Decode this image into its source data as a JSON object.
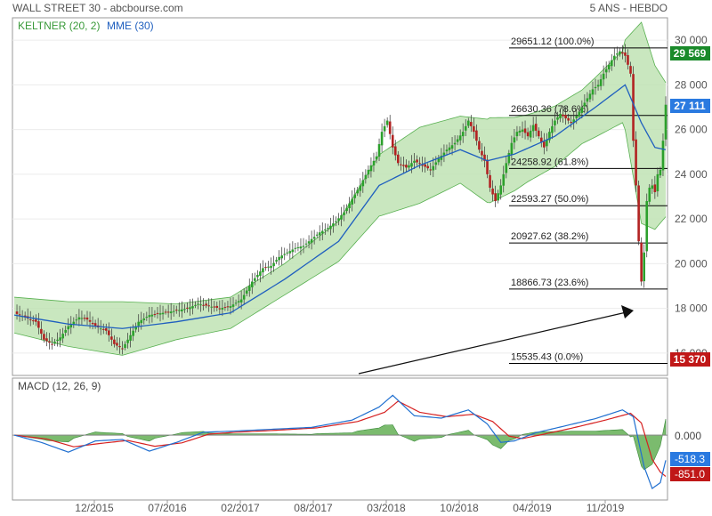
{
  "header": {
    "title": "WALL STREET 30 - abcbourse.com",
    "period": "5 ANS - HEBDO"
  },
  "legend": {
    "keltner": "KELTNER (20, 2)",
    "mme": "MME (30)",
    "macd": "MACD (12, 26, 9)"
  },
  "colors": {
    "up_candle": "#2ca02c",
    "down_candle": "#b22222",
    "keltner_fill": "#bfe3b4",
    "keltner_line": "#58b050",
    "mme_line": "#1f5fbf",
    "macd_line": "#1f6fd0",
    "signal_line": "#d62020",
    "histogram": "#5aaa4a",
    "fib_line": "#000000",
    "badge_green": "#1a8a2a",
    "badge_blue": "#2a7ae0",
    "badge_red": "#c01818"
  },
  "badges": {
    "last_high": "29 569",
    "last_price": "27 111",
    "last_low": "15 370",
    "macd_zero": "0.000",
    "macd_value": "-518.3",
    "signal_value": "-851.0"
  },
  "chart_data": [
    {
      "type": "candlestick",
      "title": "WALL STREET 30",
      "ylim": [
        15000,
        31000
      ],
      "y_ticks": [
        "16 000",
        "18 000",
        "20 000",
        "22 000",
        "24 000",
        "26 000",
        "28 000",
        "30 000"
      ],
      "x_ticks": [
        "12/2015",
        "07/2016",
        "02/2017",
        "08/2017",
        "03/2018",
        "10/2018",
        "04/2019",
        "11/2019"
      ],
      "indicators": [
        "KELTNER (20, 2)",
        "MME (30)"
      ],
      "fibonacci": [
        {
          "label": "29651.12  (100.0%)",
          "value": 29651.12
        },
        {
          "label": "26630.36  (78.6%)",
          "value": 26630.36
        },
        {
          "label": "24258.92  (61.8%)",
          "value": 24258.92
        },
        {
          "label": "22593.27  (50.0%)",
          "value": 22593.27
        },
        {
          "label": "20927.62  (38.2%)",
          "value": 20927.62
        },
        {
          "label": "18866.73  (23.6%)",
          "value": 18866.73
        },
        {
          "label": "15535.43  (0.0%)",
          "value": 15535.43
        }
      ],
      "close_path": [
        [
          0,
          17800
        ],
        [
          4,
          17600
        ],
        [
          8,
          17400
        ],
        [
          11,
          16600
        ],
        [
          14,
          16400
        ],
        [
          17,
          16700
        ],
        [
          20,
          17200
        ],
        [
          24,
          17600
        ],
        [
          27,
          17500
        ],
        [
          30,
          17200
        ],
        [
          34,
          17000
        ],
        [
          37,
          16400
        ],
        [
          40,
          16200
        ],
        [
          43,
          16800
        ],
        [
          46,
          17400
        ],
        [
          50,
          17700
        ],
        [
          55,
          17800
        ],
        [
          60,
          17900
        ],
        [
          64,
          18000
        ],
        [
          68,
          18200
        ],
        [
          72,
          18100
        ],
        [
          76,
          18000
        ],
        [
          80,
          18100
        ],
        [
          84,
          18400
        ],
        [
          88,
          19200
        ],
        [
          92,
          19800
        ],
        [
          95,
          19900
        ],
        [
          98,
          20300
        ],
        [
          101,
          20500
        ],
        [
          104,
          20700
        ],
        [
          107,
          20800
        ],
        [
          110,
          21100
        ],
        [
          113,
          21400
        ],
        [
          116,
          21600
        ],
        [
          119,
          21900
        ],
        [
          122,
          22300
        ],
        [
          125,
          22900
        ],
        [
          128,
          23500
        ],
        [
          131,
          24200
        ],
        [
          134,
          24800
        ],
        [
          136,
          25900
        ],
        [
          138,
          26400
        ],
        [
          140,
          25200
        ],
        [
          142,
          24500
        ],
        [
          145,
          24300
        ],
        [
          148,
          24600
        ],
        [
          151,
          24400
        ],
        [
          154,
          24200
        ],
        [
          157,
          24700
        ],
        [
          160,
          25100
        ],
        [
          163,
          25400
        ],
        [
          166,
          25900
        ],
        [
          168,
          26400
        ],
        [
          170,
          25900
        ],
        [
          172,
          25100
        ],
        [
          174,
          24600
        ],
        [
          176,
          23400
        ],
        [
          178,
          22800
        ],
        [
          180,
          23500
        ],
        [
          182,
          24500
        ],
        [
          184,
          25400
        ],
        [
          186,
          25900
        ],
        [
          188,
          26000
        ],
        [
          190,
          25700
        ],
        [
          192,
          26200
        ],
        [
          194,
          25700
        ],
        [
          196,
          25200
        ],
        [
          198,
          25900
        ],
        [
          200,
          26400
        ],
        [
          202,
          26700
        ],
        [
          204,
          26500
        ],
        [
          206,
          26300
        ],
        [
          208,
          26600
        ],
        [
          210,
          27000
        ],
        [
          212,
          27400
        ],
        [
          214,
          27800
        ],
        [
          216,
          28000
        ],
        [
          218,
          28500
        ],
        [
          220,
          28900
        ],
        [
          222,
          29300
        ],
        [
          224,
          29500
        ],
        [
          226,
          29300
        ],
        [
          228,
          28500
        ],
        [
          229,
          25500
        ],
        [
          230,
          23500
        ],
        [
          231,
          21000
        ],
        [
          232,
          19200
        ],
        [
          233,
          20500
        ],
        [
          234,
          22800
        ],
        [
          235,
          23400
        ],
        [
          236,
          23500
        ],
        [
          237,
          23200
        ],
        [
          238,
          24000
        ],
        [
          239,
          24200
        ],
        [
          240,
          25500
        ],
        [
          241,
          27111
        ]
      ],
      "ema_path": [
        [
          0,
          17700
        ],
        [
          20,
          17300
        ],
        [
          40,
          17100
        ],
        [
          60,
          17400
        ],
        [
          80,
          17800
        ],
        [
          100,
          19300
        ],
        [
          120,
          21000
        ],
        [
          135,
          23500
        ],
        [
          150,
          24400
        ],
        [
          165,
          25100
        ],
        [
          175,
          24600
        ],
        [
          185,
          24900
        ],
        [
          200,
          25700
        ],
        [
          215,
          27000
        ],
        [
          226,
          28000
        ],
        [
          232,
          26300
        ],
        [
          237,
          25200
        ],
        [
          241,
          25100
        ]
      ],
      "band_width_path": [
        [
          0,
          800
        ],
        [
          20,
          1000
        ],
        [
          40,
          1200
        ],
        [
          60,
          800
        ],
        [
          80,
          700
        ],
        [
          100,
          700
        ],
        [
          120,
          900
        ],
        [
          136,
          1400
        ],
        [
          150,
          1700
        ],
        [
          165,
          1500
        ],
        [
          176,
          1900
        ],
        [
          190,
          1500
        ],
        [
          210,
          1200
        ],
        [
          225,
          1600
        ],
        [
          232,
          4500
        ],
        [
          241,
          3000
        ]
      ]
    },
    {
      "type": "line",
      "title": "MACD (12, 26, 9)",
      "ylim": [
        -1300,
        900
      ],
      "series": [
        {
          "name": "MACD",
          "values": [
            [
              0,
              0
            ],
            [
              10,
              -150
            ],
            [
              20,
              -350
            ],
            [
              30,
              -120
            ],
            [
              40,
              -90
            ],
            [
              50,
              -330
            ],
            [
              60,
              -150
            ],
            [
              70,
              60
            ],
            [
              80,
              80
            ],
            [
              95,
              120
            ],
            [
              110,
              160
            ],
            [
              125,
              310
            ],
            [
              135,
              580
            ],
            [
              140,
              820
            ],
            [
              148,
              400
            ],
            [
              158,
              350
            ],
            [
              168,
              520
            ],
            [
              175,
              230
            ],
            [
              180,
              -150
            ],
            [
              185,
              -120
            ],
            [
              193,
              50
            ],
            [
              203,
              180
            ],
            [
              215,
              340
            ],
            [
              225,
              520
            ],
            [
              229,
              380
            ],
            [
              233,
              -650
            ],
            [
              236,
              -1100
            ],
            [
              239,
              -980
            ],
            [
              241,
              -518.3
            ]
          ]
        },
        {
          "name": "Signal",
          "values": [
            [
              0,
              0
            ],
            [
              12,
              -80
            ],
            [
              22,
              -240
            ],
            [
              32,
              -170
            ],
            [
              42,
              -110
            ],
            [
              52,
              -230
            ],
            [
              62,
              -160
            ],
            [
              72,
              20
            ],
            [
              82,
              60
            ],
            [
              97,
              100
            ],
            [
              112,
              150
            ],
            [
              127,
              280
            ],
            [
              137,
              470
            ],
            [
              142,
              700
            ],
            [
              150,
              470
            ],
            [
              160,
              380
            ],
            [
              170,
              430
            ],
            [
              177,
              280
            ],
            [
              183,
              -20
            ],
            [
              188,
              -70
            ],
            [
              196,
              20
            ],
            [
              206,
              140
            ],
            [
              218,
              300
            ],
            [
              228,
              450
            ],
            [
              232,
              250
            ],
            [
              236,
              -500
            ],
            [
              239,
              -760
            ],
            [
              241,
              -851.0
            ]
          ]
        }
      ]
    }
  ]
}
